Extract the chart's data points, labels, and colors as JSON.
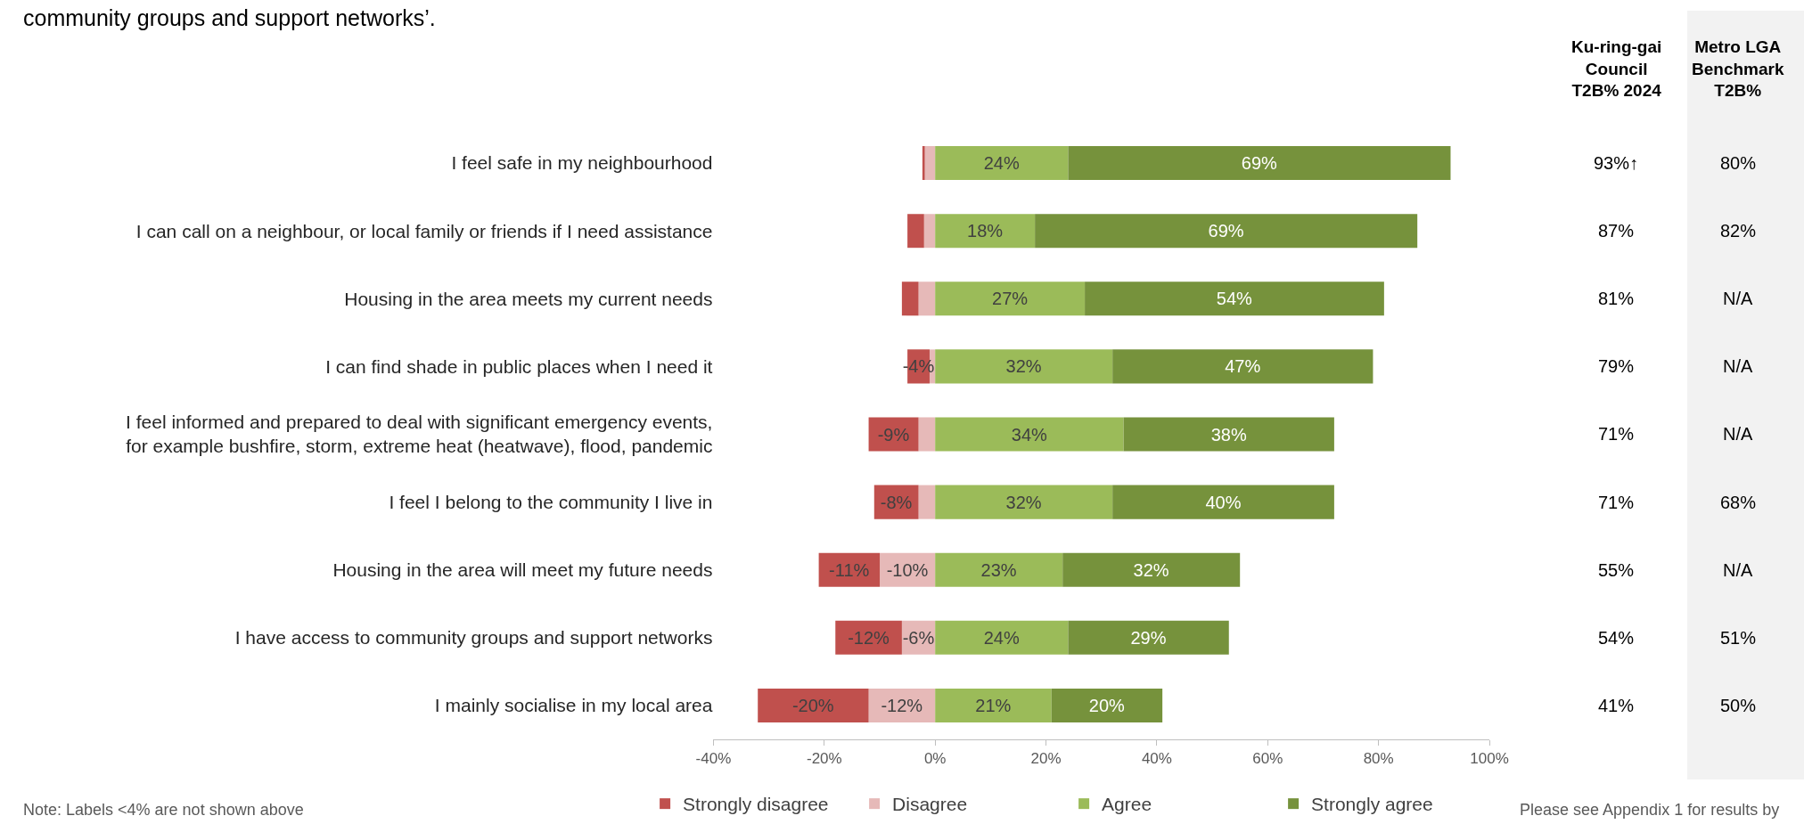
{
  "chart_data": [
    {
      "type": "bar",
      "orientation": "horizontal",
      "stacked": true,
      "title": "community groups and support networks’.",
      "categories": [
        "I feel safe in my neighbourhood",
        "I can call on a neighbour, or local family or friends if I need assistance",
        "Housing in the area meets my current needs",
        "I can find shade in public places when I need it",
        "I feel informed and prepared to deal with significant emergency events,\nfor example bushfire, storm, extreme heat (heatwave), flood, pandemic",
        "I feel I belong to the community I live in",
        "Housing in the area will meet my future needs",
        "I have access to community groups and support networks",
        "I mainly socialise in my local area"
      ],
      "series": [
        {
          "name": "Disagree",
          "color": "#e6b9b8",
          "values": [
            -2,
            -2,
            -3,
            -1,
            -3,
            -3,
            -10,
            -6,
            -12
          ],
          "value_labels": [
            null,
            null,
            null,
            null,
            null,
            null,
            "-10%",
            "-6%",
            "-12%"
          ]
        },
        {
          "name": "Strongly disagree",
          "color": "#c0504d",
          "values": [
            -0.3,
            -3,
            -3,
            -4,
            -9,
            -8,
            -11,
            -12,
            -20
          ],
          "value_labels": [
            null,
            null,
            null,
            "-4%",
            "-9%",
            "-8%",
            "-11%",
            "-12%",
            "-20%"
          ]
        },
        {
          "name": "Agree",
          "color": "#9bbb59",
          "values": [
            24,
            18,
            27,
            32,
            34,
            32,
            23,
            24,
            21
          ],
          "value_labels": [
            "24%",
            "18%",
            "27%",
            "32%",
            "34%",
            "32%",
            "23%",
            "24%",
            "21%"
          ]
        },
        {
          "name": "Strongly agree",
          "color": "#76923c",
          "values": [
            69,
            69,
            54,
            47,
            38,
            40,
            32,
            29,
            20
          ],
          "value_labels": [
            "69%",
            "69%",
            "54%",
            "47%",
            "38%",
            "40%",
            "32%",
            "29%",
            "20%"
          ]
        }
      ],
      "xlim": [
        -40,
        100
      ],
      "xticks": [
        {
          "value": -40,
          "label": "-40%"
        },
        {
          "value": -20,
          "label": "-20%"
        },
        {
          "value": 0,
          "label": "0%"
        },
        {
          "value": 20,
          "label": "20%"
        },
        {
          "value": 40,
          "label": "40%"
        },
        {
          "value": 60,
          "label": "60%"
        },
        {
          "value": 80,
          "label": "80%"
        },
        {
          "value": 100,
          "label": "100%"
        }
      ],
      "legend": "bottom",
      "annotations": [
        "Note: Labels <4% are not shown above",
        "Please see Appendix 1 for results by"
      ]
    },
    {
      "type": "other",
      "annotations": [
        "Ku-ring-gai\nCouncil\nT2B% 2024",
        "Metro LGA\nBenchmark\nT2B%",
        "93%↑",
        "80%",
        "87%",
        "82%",
        "81%",
        "N/A",
        "79%",
        "N/A",
        "71%",
        "N/A",
        "71%",
        "68%",
        "55%",
        "N/A",
        "54%",
        "51%",
        "41%",
        "50%"
      ]
    }
  ]
}
